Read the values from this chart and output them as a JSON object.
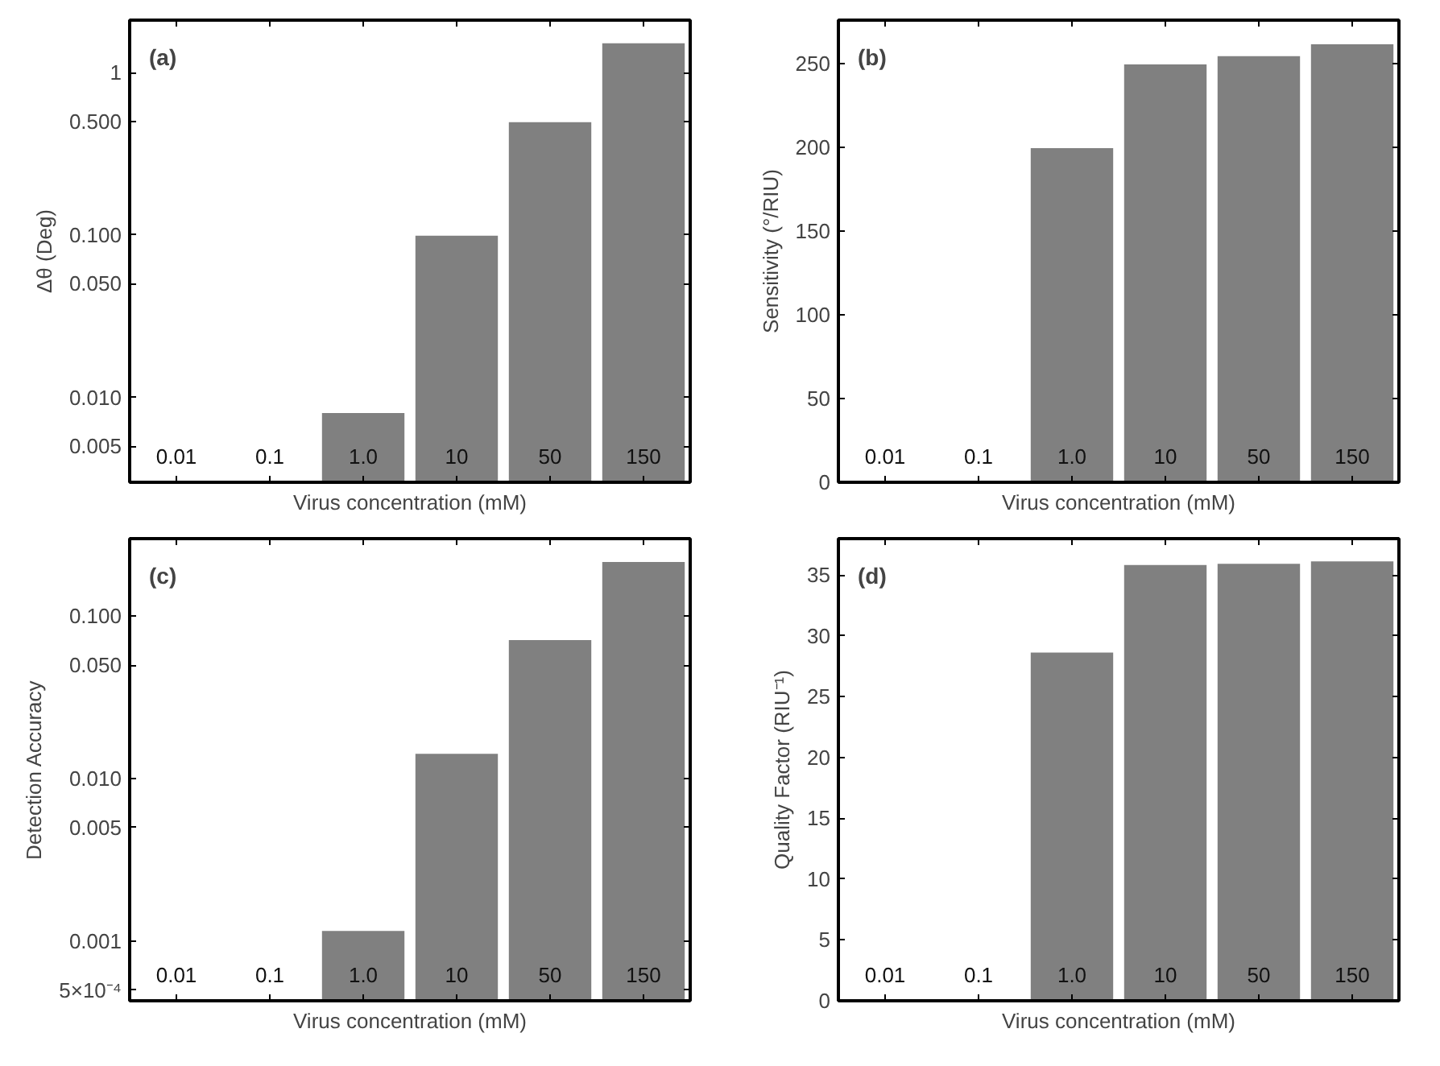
{
  "chart_data": [
    {
      "type": "bar",
      "title": "(a)",
      "xlabel": "Virus concentration (mM)",
      "ylabel": "Δθ (Deg)",
      "log": "y",
      "grid": false,
      "color": "#808080",
      "categories": [
        "0.01",
        "0.1",
        "1.0",
        "10",
        "50",
        "150"
      ],
      "values": [
        null,
        null,
        0.0081,
        0.1,
        0.5,
        1.53
      ],
      "ylim": [
        0.003,
        2.1
      ],
      "yticks": [
        {
          "value": 0.005,
          "label": "0.005"
        },
        {
          "value": 0.01,
          "label": "0.010"
        },
        {
          "value": 0.05,
          "label": "0.050"
        },
        {
          "value": 0.1,
          "label": "0.100"
        },
        {
          "value": 0.5,
          "label": "0.500"
        },
        1
      ]
    },
    {
      "type": "bar",
      "title": "(b)",
      "xlabel": "Virus concentration (mM)",
      "ylabel": "Sensitivity (°/RIU)",
      "grid": false,
      "color": "#808080",
      "categories": [
        "0.01",
        "0.1",
        "1.0",
        "10",
        "50",
        "150"
      ],
      "values": [
        null,
        null,
        200,
        250,
        255,
        262
      ],
      "ylim": [
        0,
        276
      ],
      "yticks": [
        0,
        50,
        100,
        150,
        200,
        250
      ]
    },
    {
      "type": "bar",
      "title": "(c)",
      "xlabel": "Virus concentration (mM)",
      "ylabel": "Detection Accuracy",
      "log": "y",
      "grid": false,
      "color": "#808080",
      "categories": [
        "0.01",
        "0.1",
        "1.0",
        "10",
        "50",
        "150"
      ],
      "values": [
        null,
        null,
        0.00117,
        0.0144,
        0.072,
        0.218
      ],
      "ylim": [
        0.00043,
        0.3
      ],
      "yticks": [
        {
          "value": 0.0005,
          "label": "5×10⁻⁴"
        },
        {
          "value": 0.001,
          "label": "0.001"
        },
        {
          "value": 0.005,
          "label": "0.005"
        },
        {
          "value": 0.01,
          "label": "0.010"
        },
        {
          "value": 0.05,
          "label": "0.050"
        },
        {
          "value": 0.1,
          "label": "0.100"
        }
      ]
    },
    {
      "type": "bar",
      "title": "(d)",
      "xlabel": "Virus concentration (mM)",
      "ylabel": "Quality Factor (RIU⁻¹)",
      "grid": false,
      "color": "#808080",
      "categories": [
        "0.01",
        "0.1",
        "1.0",
        "10",
        "50",
        "150"
      ],
      "values": [
        null,
        null,
        28.7,
        35.9,
        36.0,
        36.2
      ],
      "ylim": [
        0,
        38
      ],
      "yticks": [
        0,
        5,
        10,
        15,
        20,
        25,
        30,
        35
      ]
    }
  ]
}
